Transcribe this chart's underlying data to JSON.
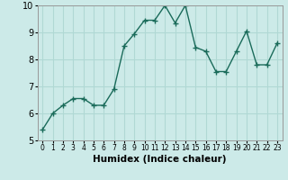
{
  "x": [
    0,
    1,
    2,
    3,
    4,
    5,
    6,
    7,
    8,
    9,
    10,
    11,
    12,
    13,
    14,
    15,
    16,
    17,
    18,
    19,
    20,
    21,
    22,
    23
  ],
  "y": [
    5.4,
    6.0,
    6.3,
    6.55,
    6.55,
    6.3,
    6.3,
    6.9,
    8.5,
    8.95,
    9.45,
    9.45,
    10.0,
    9.35,
    10.0,
    8.45,
    8.3,
    7.55,
    7.55,
    8.3,
    9.05,
    7.8,
    7.8,
    8.6
  ],
  "line_color": "#1a6b5a",
  "marker": "+",
  "marker_size": 4,
  "linewidth": 1.0,
  "bg_color": "#cceae8",
  "grid_color": "#b0d8d4",
  "xlabel": "Humidex (Indice chaleur)",
  "xlim": [
    -0.5,
    23.5
  ],
  "ylim": [
    5,
    10
  ],
  "yticks": [
    5,
    6,
    7,
    8,
    9,
    10
  ],
  "xticks": [
    0,
    1,
    2,
    3,
    4,
    5,
    6,
    7,
    8,
    9,
    10,
    11,
    12,
    13,
    14,
    15,
    16,
    17,
    18,
    19,
    20,
    21,
    22,
    23
  ],
  "xlabel_fontsize": 7.5,
  "tick_fontsize_x": 5.5,
  "tick_fontsize_y": 7
}
